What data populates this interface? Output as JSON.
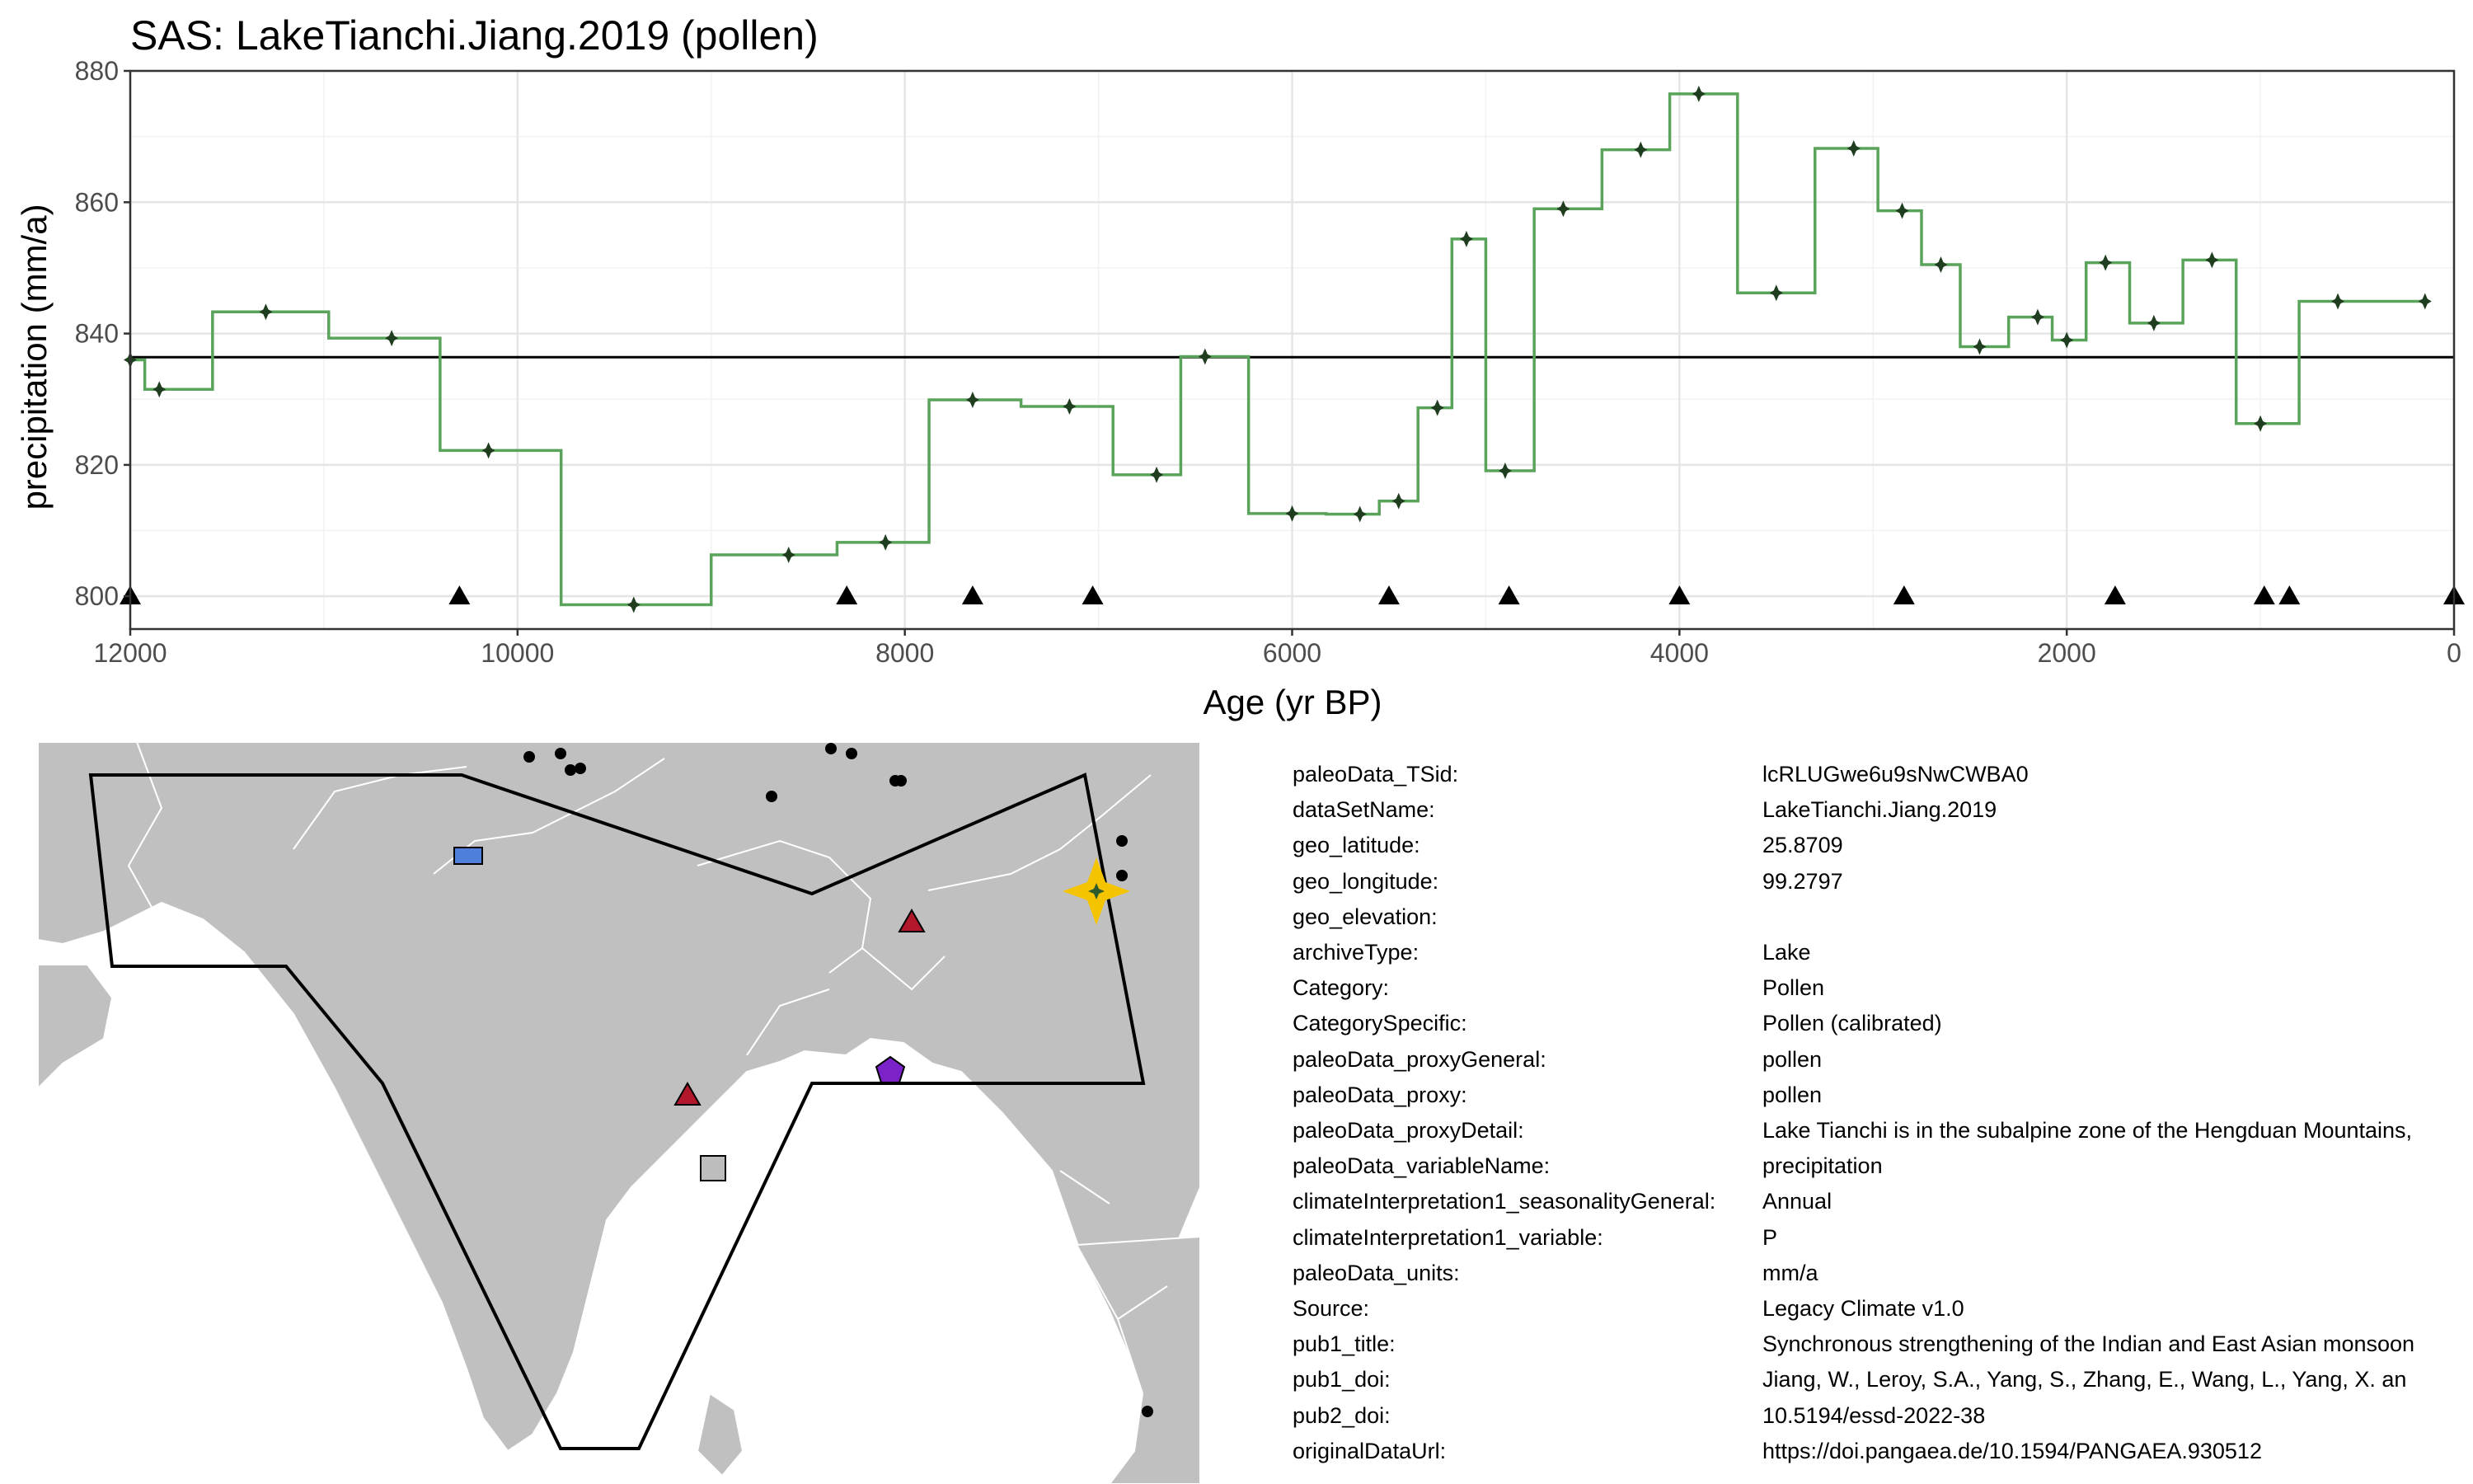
{
  "chart_data": {
    "type": "line",
    "title": "SAS: LakeTianchi.Jiang.2019 (pollen)",
    "xlabel": "Age (yr BP)",
    "ylabel": "precipitation (mm/a)",
    "xlim": [
      12000,
      0
    ],
    "ylim": [
      795,
      880
    ],
    "x_reversed": true,
    "grid": true,
    "xticks": [
      12000,
      10000,
      8000,
      6000,
      4000,
      2000,
      0
    ],
    "yticks": [
      800,
      820,
      840,
      860,
      880
    ],
    "mean_line": 836.4,
    "series": [
      {
        "x": [
          12000,
          11850,
          11300,
          10650,
          10150,
          9400,
          8600,
          8100,
          7650,
          7150,
          6700,
          6450,
          6000,
          5650,
          5450,
          5250,
          5100,
          4900,
          4600,
          4200,
          3900,
          3500,
          3100,
          2850,
          2650,
          2450,
          2150,
          2000,
          1800,
          1550,
          1250,
          1000,
          600,
          150
        ],
        "y": [
          836,
          831.5,
          843.3,
          839.3,
          822.2,
          798.7,
          806.3,
          808.2,
          829.9,
          828.9,
          818.5,
          836.5,
          812.6,
          812.5,
          814.5,
          828.7,
          854.4,
          819.1,
          859.0,
          868.0,
          876.5,
          846.2,
          868.2,
          858.7,
          850.5,
          838.0,
          842.5,
          839.0,
          850.8,
          841.6,
          851.2,
          826.3,
          844.9,
          844.9
        ],
        "color": "#5aa35a"
      }
    ],
    "age_markers_x": [
      12000,
      10300,
      8300,
      7650,
      7030,
      5500,
      4880,
      4000,
      2840,
      1750,
      980,
      850,
      0
    ],
    "age_marker_y": 800
  },
  "map": {
    "polygon_color": "#000000",
    "land_color": "#c0c0c0",
    "target_marker_color": "#f5c400",
    "other_markers": [
      {
        "shape": "rectangle",
        "color": "#4f7fdb"
      },
      {
        "shape": "triangle",
        "color": "#b2182b"
      },
      {
        "shape": "triangle",
        "color": "#b2182b"
      },
      {
        "shape": "pentagon",
        "color": "#7b22c9"
      },
      {
        "shape": "square",
        "color": "#bdbdbd"
      }
    ]
  },
  "metadata": [
    {
      "key": "paleoData_TSid:",
      "value": "lcRLUGwe6u9sNwCWBA0"
    },
    {
      "key": "dataSetName:",
      "value": "LakeTianchi.Jiang.2019"
    },
    {
      "key": "geo_latitude:",
      "value": "25.8709"
    },
    {
      "key": "geo_longitude:",
      "value": "99.2797"
    },
    {
      "key": "geo_elevation:",
      "value": ""
    },
    {
      "key": "archiveType:",
      "value": "Lake"
    },
    {
      "key": "Category:",
      "value": "Pollen"
    },
    {
      "key": "CategorySpecific:",
      "value": "Pollen (calibrated)"
    },
    {
      "key": "paleoData_proxyGeneral:",
      "value": "pollen"
    },
    {
      "key": "paleoData_proxy:",
      "value": "pollen"
    },
    {
      "key": "paleoData_proxyDetail:",
      "value": "Lake Tianchi is in the subalpine zone of the Hengduan Mountains,"
    },
    {
      "key": "paleoData_variableName:",
      "value": "precipitation"
    },
    {
      "key": "climateInterpretation1_seasonalityGeneral:",
      "value": "Annual"
    },
    {
      "key": "climateInterpretation1_variable:",
      "value": "P"
    },
    {
      "key": "paleoData_units:",
      "value": "mm/a"
    },
    {
      "key": "Source:",
      "value": "Legacy Climate v1.0"
    },
    {
      "key": "pub1_title:",
      "value": "Synchronous strengthening of the Indian and East Asian monsoon"
    },
    {
      "key": "pub1_doi:",
      "value": "Jiang, W., Leroy, S.A., Yang, S., Zhang, E., Wang, L., Yang, X. an"
    },
    {
      "key": "pub2_doi:",
      "value": "10.5194/essd-2022-38"
    },
    {
      "key": "originalDataUrl:",
      "value": "https://doi.pangaea.de/10.1594/PANGAEA.930512"
    }
  ]
}
